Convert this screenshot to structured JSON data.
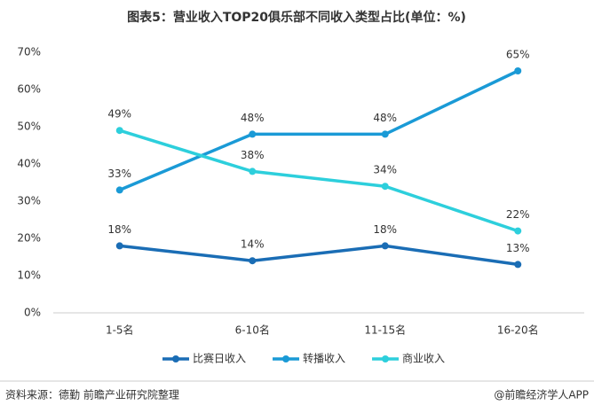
{
  "chart_data": {
    "type": "line",
    "title": "图表5：营业收入TOP20俱乐部不同收入类型占比(单位：%)",
    "categories": [
      "1-5名",
      "6-10名",
      "11-15名",
      "16-20名"
    ],
    "series": [
      {
        "name": "比赛日收入",
        "color": "#1a6db5",
        "values": [
          18,
          14,
          18,
          13
        ],
        "value_labels": [
          "18%",
          "14%",
          "18%",
          "13%"
        ]
      },
      {
        "name": "转播收入",
        "color": "#1a9ad6",
        "values": [
          33,
          48,
          48,
          65
        ],
        "value_labels": [
          "33%",
          "48%",
          "48%",
          "65%"
        ]
      },
      {
        "name": "商业收入",
        "color": "#2dcfdc",
        "values": [
          49,
          38,
          34,
          22
        ],
        "value_labels": [
          "49%",
          "38%",
          "34%",
          "22%"
        ]
      }
    ],
    "ylim": [
      0,
      70
    ],
    "yticks": [
      {
        "value": 0,
        "label": "0%"
      },
      {
        "value": 10,
        "label": "10%"
      },
      {
        "value": 20,
        "label": "20%"
      },
      {
        "value": 30,
        "label": "30%"
      },
      {
        "value": 40,
        "label": "40%"
      },
      {
        "value": 50,
        "label": "50%"
      },
      {
        "value": 60,
        "label": "60%"
      },
      {
        "value": 70,
        "label": "70%"
      }
    ],
    "legend": "bottom",
    "source": "资料来源：德勤 前瞻产业研究院整理",
    "credit": "@前瞻经济学人APP"
  }
}
